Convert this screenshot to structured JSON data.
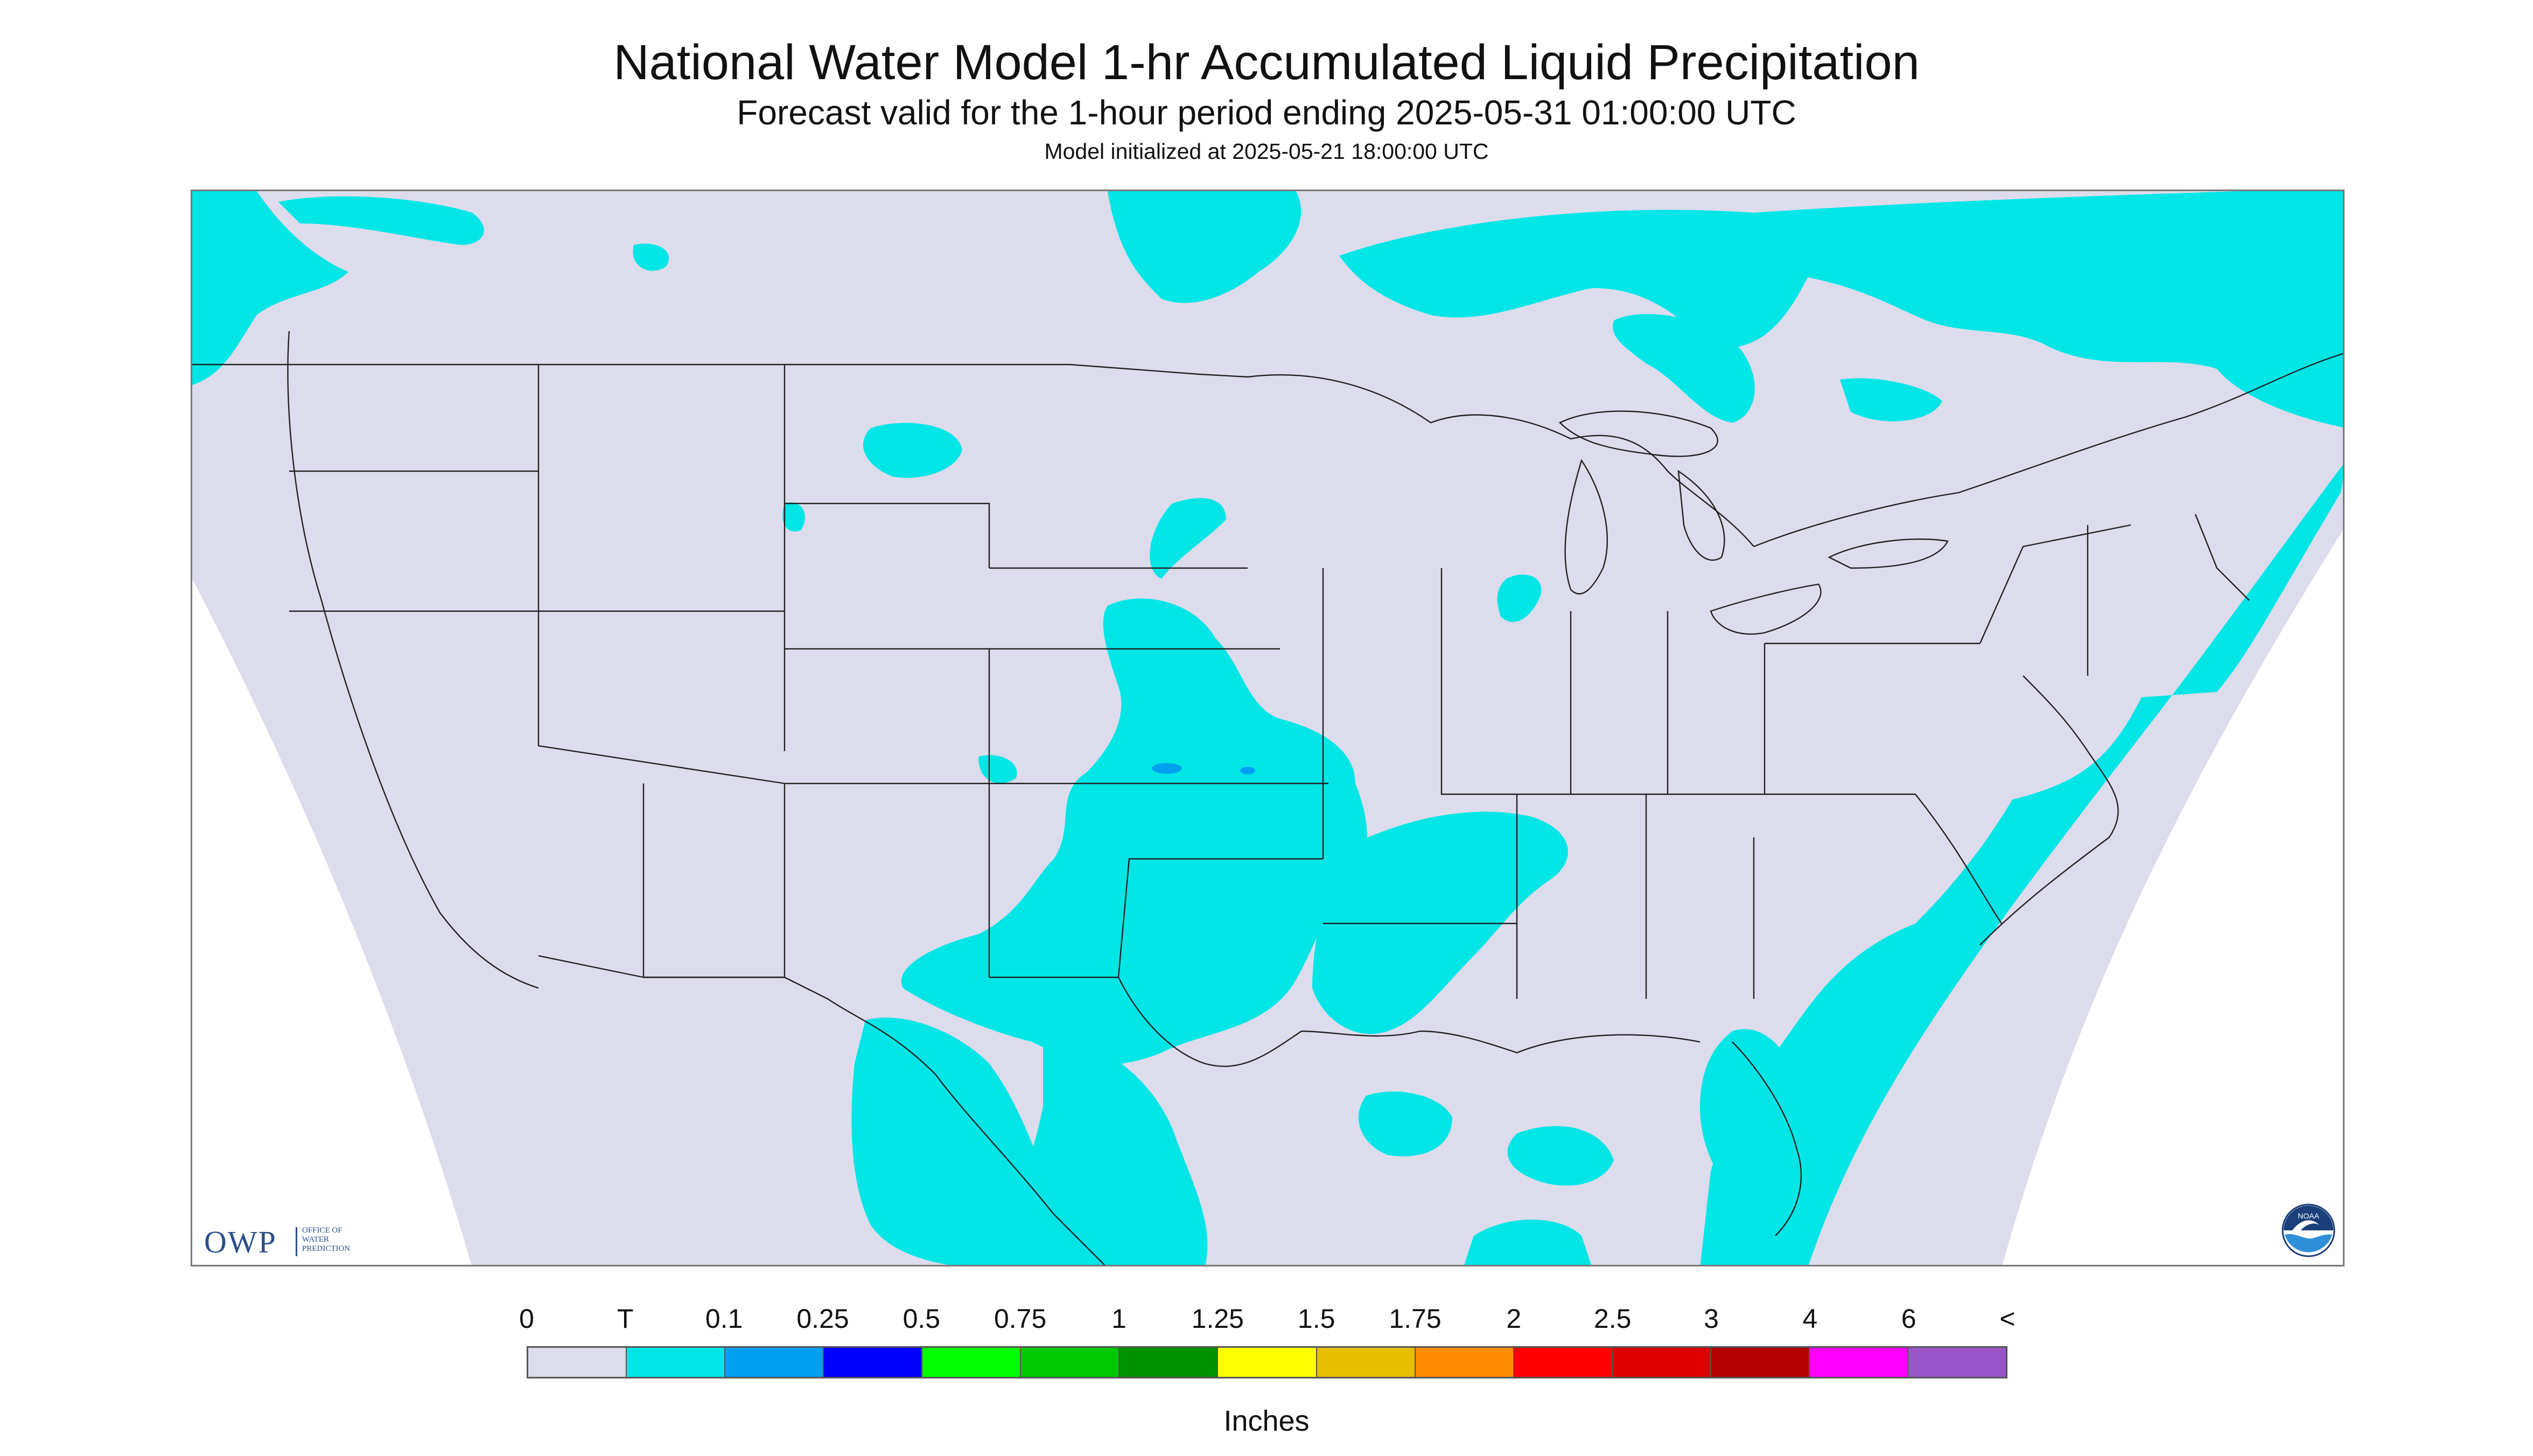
{
  "header": {
    "title": "National Water Model 1-hr Accumulated Liquid Precipitation",
    "subtitle": "Forecast valid for the 1-hour period ending 2025-05-31 01:00:00 UTC",
    "init_line": "Model initialized at 2025-05-21 18:00:00 UTC"
  },
  "map": {
    "region": "CONUS",
    "background_color": "#dcdcec",
    "trace_color": "#00e6e6",
    "light_blue_color": "#00a0f0",
    "outside_color": "#ffffff",
    "boundary_color": "#222222"
  },
  "logos": {
    "owp_letters": "OWP",
    "owp_words": "OFFICE OF\nWATER\nPREDICTION",
    "noaa_text": "NOAA"
  },
  "legend": {
    "labels": [
      "0",
      "T",
      "0.1",
      "0.25",
      "0.5",
      "0.75",
      "1",
      "1.25",
      "1.5",
      "1.75",
      "2",
      "2.5",
      "3",
      "4",
      "6",
      "<"
    ],
    "colors": [
      "#dcdcec",
      "#00e6e6",
      "#00a0f0",
      "#0000ff",
      "#00ff00",
      "#00c800",
      "#009100",
      "#ffff00",
      "#e6c000",
      "#ff8c00",
      "#ff0000",
      "#dc0000",
      "#b40000",
      "#ff00ff",
      "#9955c8"
    ],
    "units": "Inches"
  }
}
